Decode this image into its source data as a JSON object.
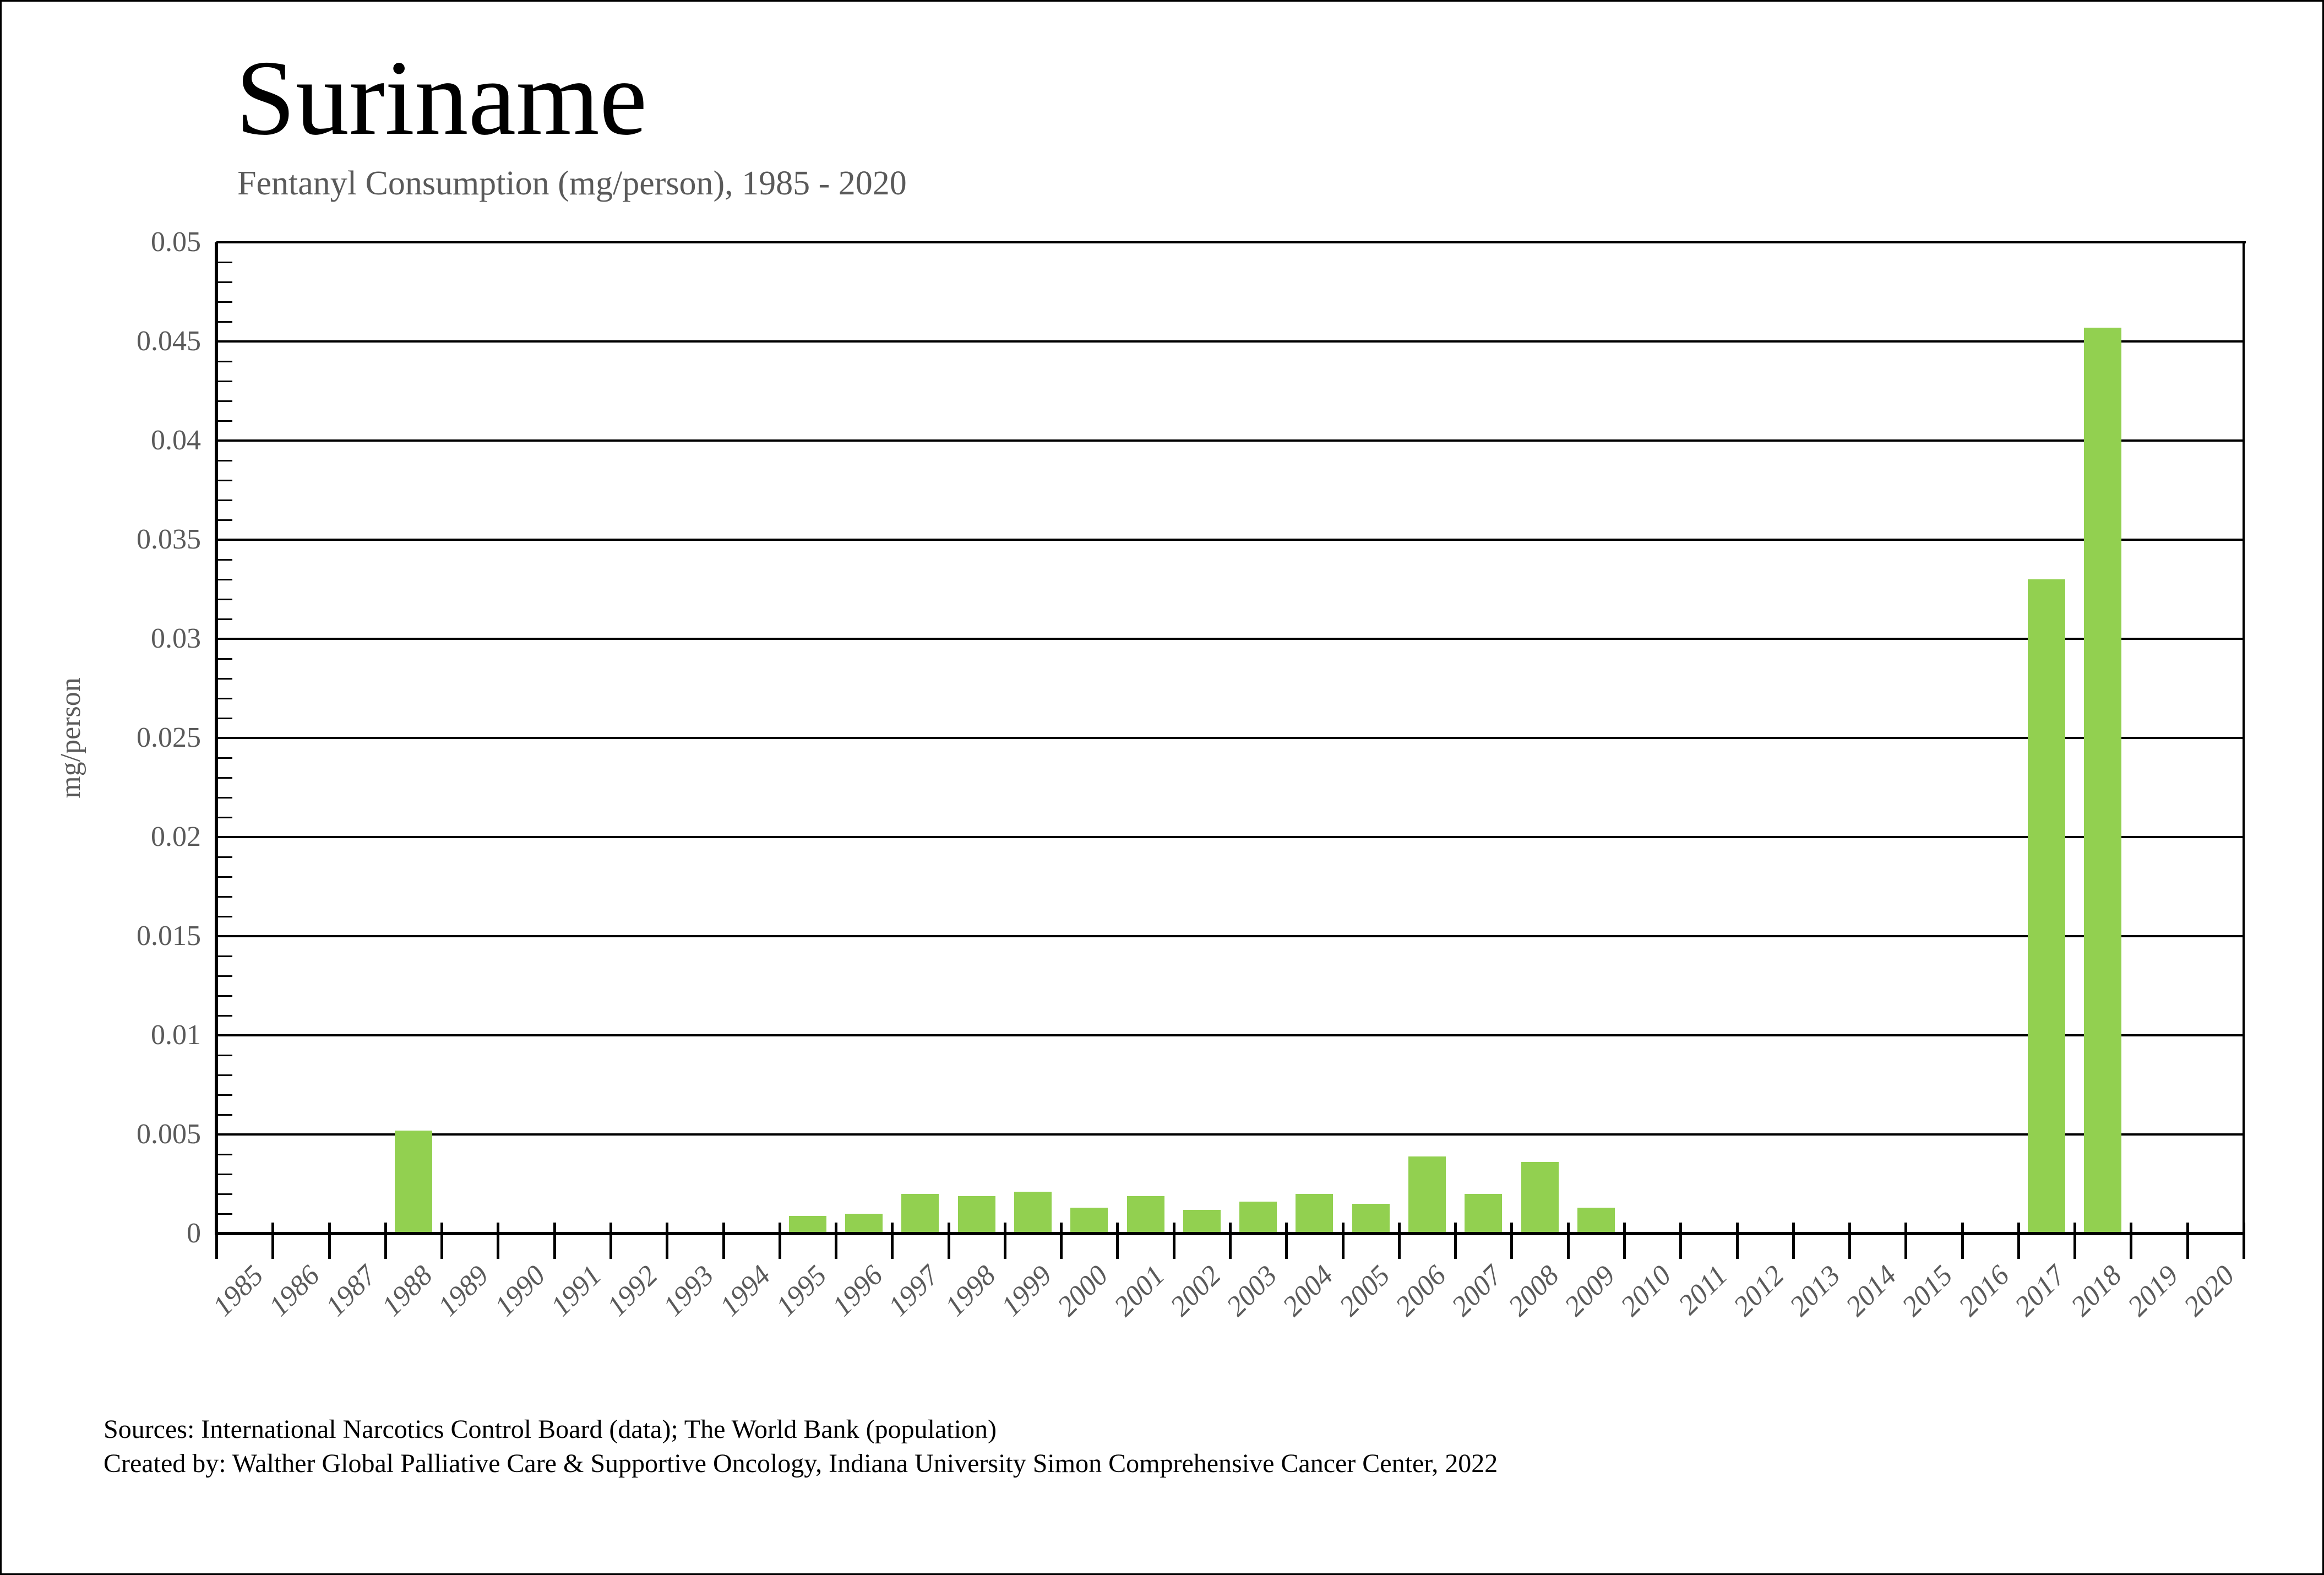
{
  "page": {
    "background_color": "#ffffff",
    "border_color": "#000000"
  },
  "header": {
    "title": "Suriname",
    "subtitle": "Fentanyl Consumption (mg/person), 1985 - 2020"
  },
  "y_axis": {
    "label": "mg/person",
    "tick_labels": [
      "0",
      "0.005",
      "0.01",
      "0.015",
      "0.02",
      "0.025",
      "0.03",
      "0.035",
      "0.04",
      "0.045",
      "0.05"
    ]
  },
  "footer": {
    "sources": "Sources: International Narcotics Control Board (data); The World Bank (population)",
    "created_by": "Created by: Walther Global Palliative Care & Supportive Oncology, Indiana University Simon Comprehensive Cancer Center, 2022"
  },
  "chart_data": {
    "type": "bar",
    "title": "Fentanyl Consumption (mg/person), 1985 - 2020",
    "xlabel": "",
    "ylabel": "mg/person",
    "ylim": [
      0,
      0.05
    ],
    "y_major_step": 0.005,
    "y_minor_step": 0.001,
    "grid": "horizontal-major",
    "legend_position": "none",
    "bar_color": "#92D050",
    "categories": [
      "1985",
      "1986",
      "1987",
      "1988",
      "1989",
      "1990",
      "1991",
      "1992",
      "1993",
      "1994",
      "1995",
      "1996",
      "1997",
      "1998",
      "1999",
      "2000",
      "2001",
      "2002",
      "2003",
      "2004",
      "2005",
      "2006",
      "2007",
      "2008",
      "2009",
      "2010",
      "2011",
      "2012",
      "2013",
      "2014",
      "2015",
      "2016",
      "2017",
      "2018",
      "2019",
      "2020"
    ],
    "values": [
      0,
      0,
      0,
      0.0052,
      0,
      0,
      0,
      0,
      0,
      0,
      0.0009,
      0.001,
      0.002,
      0.0019,
      0.0021,
      0.0013,
      0.0019,
      0.0012,
      0.0016,
      0.002,
      0.0015,
      0.0039,
      0.002,
      0.0036,
      0.0013,
      0,
      0,
      0,
      0,
      0,
      0,
      0,
      0.033,
      0.0457,
      0,
      0
    ]
  }
}
